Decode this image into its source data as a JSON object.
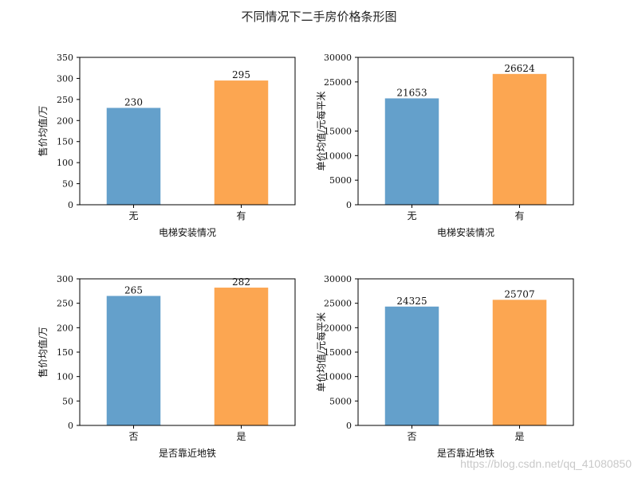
{
  "figure": {
    "title": "不同情况下二手房价格条形图",
    "watermark": "https://blog.csdn.net/qq_41080850",
    "colors": {
      "series_a": "#64a0cb",
      "series_b": "#fca651"
    }
  },
  "chart_data": [
    {
      "type": "bar",
      "categories": [
        "无",
        "有"
      ],
      "values": [
        230,
        295
      ],
      "xlabel": "电梯安装情况",
      "ylabel": "售价均值/万",
      "ylim": [
        0,
        350
      ],
      "yticks": [
        0,
        50,
        100,
        150,
        200,
        250,
        300,
        350
      ],
      "data_labels": [
        "230",
        "295"
      ],
      "grid": false
    },
    {
      "type": "bar",
      "categories": [
        "无",
        "有"
      ],
      "values": [
        21653,
        26624
      ],
      "xlabel": "电梯安装情况",
      "ylabel": "单价均值/元每平米",
      "ylim": [
        0,
        30000
      ],
      "yticks": [
        0,
        5000,
        10000,
        15000,
        25000,
        30000
      ],
      "data_labels": [
        "21653",
        "26624"
      ],
      "grid": false
    },
    {
      "type": "bar",
      "categories": [
        "否",
        "是"
      ],
      "values": [
        265,
        282
      ],
      "xlabel": "是否靠近地铁",
      "ylabel": "售价均值/万",
      "ylim": [
        0,
        300
      ],
      "yticks": [
        0,
        50,
        100,
        150,
        200,
        250,
        300
      ],
      "data_labels": [
        "265",
        "282"
      ],
      "grid": false
    },
    {
      "type": "bar",
      "categories": [
        "否",
        "是"
      ],
      "values": [
        24325,
        25707
      ],
      "xlabel": "是否靠近地铁",
      "ylabel": "单价均值/元每平米",
      "ylim": [
        0,
        30000
      ],
      "yticks": [
        0,
        5000,
        10000,
        15000,
        20000,
        25000,
        30000
      ],
      "data_labels": [
        "24325",
        "25707"
      ],
      "grid": false
    }
  ]
}
